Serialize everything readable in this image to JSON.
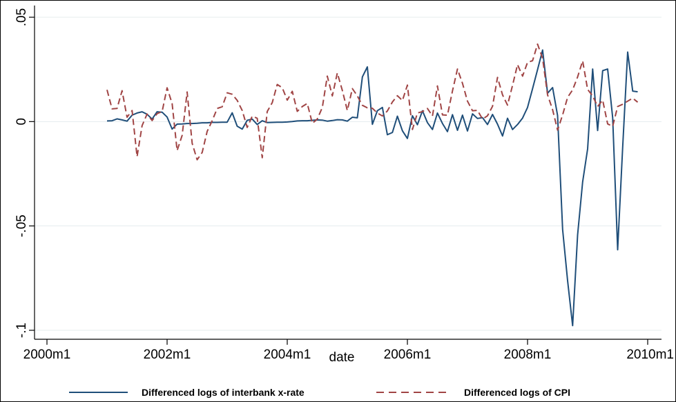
{
  "chart_data": {
    "type": "line",
    "title": "",
    "xlabel": "date",
    "ylabel": "",
    "x_ticks": [
      "2000m1",
      "2002m1",
      "2004m1",
      "2006m1",
      "2008m1",
      "2010m1"
    ],
    "y_ticks": [
      ".05",
      "0",
      "-.05",
      "-.1"
    ],
    "y_tick_values": [
      0.05,
      0,
      -0.05,
      -0.1
    ],
    "xlim": [
      "2000m1",
      "2010m1"
    ],
    "ylim": [
      -0.1,
      0.05
    ],
    "grid": "horizontal",
    "legend_position": "bottom",
    "series": [
      {
        "name": "Differenced logs of interbank x-rate",
        "color": "#1f4e79",
        "dash": "solid",
        "points": [
          [
            "2001m1",
            0.0003
          ],
          [
            "2001m2",
            0.0004
          ],
          [
            "2001m3",
            0.0013
          ],
          [
            "2001m4",
            0.0008
          ],
          [
            "2001m5",
            0.0002
          ],
          [
            "2001m6",
            0.0031
          ],
          [
            "2001m7",
            0.0041
          ],
          [
            "2001m8",
            0.0047
          ],
          [
            "2001m9",
            0.0035
          ],
          [
            "2001m10",
            0.0012
          ],
          [
            "2001m11",
            0.0047
          ],
          [
            "2001m12",
            0.0045
          ],
          [
            "2002m1",
            0.0022
          ],
          [
            "2002m2",
            -0.0036
          ],
          [
            "2002m3",
            -0.0012
          ],
          [
            "2002m4",
            -0.0011
          ],
          [
            "2002m5",
            -0.0009
          ],
          [
            "2002m6",
            -0.0009
          ],
          [
            "2002m7",
            -0.0008
          ],
          [
            "2002m8",
            -0.0006
          ],
          [
            "2002m9",
            -0.0006
          ],
          [
            "2002m10",
            -0.0004
          ],
          [
            "2002m11",
            -0.0004
          ],
          [
            "2002m12",
            -0.0003
          ],
          [
            "2003m1",
            -0.0003
          ],
          [
            "2003m2",
            0.0042
          ],
          [
            "2003m3",
            -0.0022
          ],
          [
            "2003m4",
            -0.0036
          ],
          [
            "2003m5",
            0.0006
          ],
          [
            "2003m6",
            0.0012
          ],
          [
            "2003m7",
            -0.0014
          ],
          [
            "2003m8",
            0.0004
          ],
          [
            "2003m9",
            -0.0005
          ],
          [
            "2003m10",
            -0.0004
          ],
          [
            "2003m11",
            -0.0003
          ],
          [
            "2003m12",
            -0.0003
          ],
          [
            "2004m1",
            -0.0002
          ],
          [
            "2004m2",
            0.0
          ],
          [
            "2004m3",
            0.0003
          ],
          [
            "2004m4",
            0.0004
          ],
          [
            "2004m5",
            0.0004
          ],
          [
            "2004m6",
            0.0006
          ],
          [
            "2004m7",
            0.0008
          ],
          [
            "2004m8",
            0.0007
          ],
          [
            "2004m9",
            0.0002
          ],
          [
            "2004m10",
            0.0005
          ],
          [
            "2004m11",
            0.0009
          ],
          [
            "2004m12",
            0.0008
          ],
          [
            "2005m1",
            0.0002
          ],
          [
            "2005m2",
            0.0021
          ],
          [
            "2005m3",
            0.0018
          ],
          [
            "2005m4",
            0.0214
          ],
          [
            "2005m5",
            0.0262
          ],
          [
            "2005m6",
            -0.0013
          ],
          [
            "2005m7",
            0.0052
          ],
          [
            "2005m8",
            0.0068
          ],
          [
            "2005m9",
            -0.0063
          ],
          [
            "2005m10",
            -0.0052
          ],
          [
            "2005m11",
            0.0026
          ],
          [
            "2005m12",
            -0.0044
          ],
          [
            "2006m1",
            -0.0081
          ],
          [
            "2006m2",
            0.0028
          ],
          [
            "2006m3",
            -0.0015
          ],
          [
            "2006m4",
            0.0052
          ],
          [
            "2006m5",
            -0.0005
          ],
          [
            "2006m6",
            -0.0038
          ],
          [
            "2006m7",
            0.0041
          ],
          [
            "2006m8",
            -0.0009
          ],
          [
            "2006m9",
            -0.0048
          ],
          [
            "2006m10",
            0.0033
          ],
          [
            "2006m11",
            -0.0042
          ],
          [
            "2006m12",
            0.0031
          ],
          [
            "2007m1",
            -0.0045
          ],
          [
            "2007m2",
            0.0037
          ],
          [
            "2007m3",
            0.0015
          ],
          [
            "2007m4",
            0.0019
          ],
          [
            "2007m5",
            -0.0014
          ],
          [
            "2007m6",
            0.0034
          ],
          [
            "2007m7",
            -0.0012
          ],
          [
            "2007m8",
            -0.0069
          ],
          [
            "2007m9",
            0.0016
          ],
          [
            "2007m10",
            -0.0038
          ],
          [
            "2007m11",
            -0.0014
          ],
          [
            "2007m12",
            0.0017
          ],
          [
            "2008m1",
            0.0068
          ],
          [
            "2008m2",
            0.0158
          ],
          [
            "2008m3",
            0.0249
          ],
          [
            "2008m4",
            0.0343
          ],
          [
            "2008m5",
            0.0136
          ],
          [
            "2008m6",
            0.0163
          ],
          [
            "2008m7",
            0.0029
          ],
          [
            "2008m8",
            -0.0517
          ],
          [
            "2008m9",
            -0.0762
          ],
          [
            "2008m10",
            -0.0978
          ],
          [
            "2008m11",
            -0.0543
          ],
          [
            "2008m12",
            -0.0289
          ],
          [
            "2009m1",
            -0.0131
          ],
          [
            "2009m2",
            0.0252
          ],
          [
            "2009m3",
            -0.0043
          ],
          [
            "2009m4",
            0.0244
          ],
          [
            "2009m5",
            0.0252
          ],
          [
            "2009m6",
            0.0018
          ],
          [
            "2009m7",
            -0.0614
          ],
          [
            "2009m8",
            -0.0121
          ],
          [
            "2009m9",
            0.0333
          ],
          [
            "2009m10",
            0.0146
          ],
          [
            "2009m11",
            0.0143
          ]
        ]
      },
      {
        "name": "Differenced logs of CPI",
        "color": "#a04444",
        "dash": "dashed",
        "points": [
          [
            "2001m1",
            0.0152
          ],
          [
            "2001m2",
            0.0061
          ],
          [
            "2001m3",
            0.0063
          ],
          [
            "2001m4",
            0.0148
          ],
          [
            "2001m5",
            0.0021
          ],
          [
            "2001m6",
            0.0053
          ],
          [
            "2001m7",
            -0.0168
          ],
          [
            "2001m8",
            -0.0019
          ],
          [
            "2001m9",
            0.0036
          ],
          [
            "2001m10",
            0.0005
          ],
          [
            "2001m11",
            0.0038
          ],
          [
            "2001m12",
            0.0048
          ],
          [
            "2002m1",
            0.0162
          ],
          [
            "2002m2",
            0.0086
          ],
          [
            "2002m3",
            -0.0139
          ],
          [
            "2002m4",
            -0.0066
          ],
          [
            "2002m5",
            0.0142
          ],
          [
            "2002m6",
            -0.0104
          ],
          [
            "2002m7",
            -0.0183
          ],
          [
            "2002m8",
            -0.0148
          ],
          [
            "2002m9",
            -0.0047
          ],
          [
            "2002m10",
            0.0004
          ],
          [
            "2002m11",
            0.0063
          ],
          [
            "2002m12",
            0.0071
          ],
          [
            "2003m1",
            0.0138
          ],
          [
            "2003m2",
            0.0131
          ],
          [
            "2003m3",
            0.0102
          ],
          [
            "2003m4",
            0.0053
          ],
          [
            "2003m5",
            -0.0028
          ],
          [
            "2003m6",
            0.0026
          ],
          [
            "2003m7",
            0.0016
          ],
          [
            "2003m8",
            -0.0173
          ],
          [
            "2003m9",
            0.0048
          ],
          [
            "2003m10",
            0.0091
          ],
          [
            "2003m11",
            0.0178
          ],
          [
            "2003m12",
            0.0162
          ],
          [
            "2004m1",
            0.0103
          ],
          [
            "2004m2",
            0.0145
          ],
          [
            "2004m3",
            0.0049
          ],
          [
            "2004m4",
            0.0072
          ],
          [
            "2004m5",
            0.0087
          ],
          [
            "2004m6",
            -0.0008
          ],
          [
            "2004m7",
            0.0012
          ],
          [
            "2004m8",
            0.0068
          ],
          [
            "2004m9",
            0.0218
          ],
          [
            "2004m10",
            0.0123
          ],
          [
            "2004m11",
            0.0233
          ],
          [
            "2004m12",
            0.0149
          ],
          [
            "2005m1",
            0.0053
          ],
          [
            "2005m2",
            0.0158
          ],
          [
            "2005m3",
            0.0123
          ],
          [
            "2005m4",
            0.0078
          ],
          [
            "2005m5",
            0.0066
          ],
          [
            "2005m6",
            0.0064
          ],
          [
            "2005m7",
            0.0041
          ],
          [
            "2005m8",
            0.0027
          ],
          [
            "2005m9",
            0.0051
          ],
          [
            "2005m10",
            0.0094
          ],
          [
            "2005m11",
            0.0124
          ],
          [
            "2005m12",
            0.0101
          ],
          [
            "2006m1",
            0.0175
          ],
          [
            "2006m2",
            -0.0038
          ],
          [
            "2006m3",
            0.0041
          ],
          [
            "2006m4",
            0.0048
          ],
          [
            "2006m5",
            0.0063
          ],
          [
            "2006m6",
            0.0027
          ],
          [
            "2006m7",
            0.0171
          ],
          [
            "2006m8",
            0.0032
          ],
          [
            "2006m9",
            0.0031
          ],
          [
            "2006m10",
            0.0147
          ],
          [
            "2006m11",
            0.0252
          ],
          [
            "2006m12",
            0.0183
          ],
          [
            "2007m1",
            0.0098
          ],
          [
            "2007m2",
            0.0052
          ],
          [
            "2007m3",
            0.0054
          ],
          [
            "2007m4",
            0.0012
          ],
          [
            "2007m5",
            0.0028
          ],
          [
            "2007m6",
            0.0073
          ],
          [
            "2007m7",
            0.0212
          ],
          [
            "2007m8",
            0.0128
          ],
          [
            "2007m9",
            0.0079
          ],
          [
            "2007m10",
            0.0174
          ],
          [
            "2007m11",
            0.0273
          ],
          [
            "2007m12",
            0.0218
          ],
          [
            "2008m1",
            0.0284
          ],
          [
            "2008m2",
            0.0292
          ],
          [
            "2008m3",
            0.0371
          ],
          [
            "2008m4",
            0.0303
          ],
          [
            "2008m5",
            0.0128
          ],
          [
            "2008m6",
            0.0057
          ],
          [
            "2008m7",
            -0.0041
          ],
          [
            "2008m8",
            0.0032
          ],
          [
            "2008m9",
            0.0116
          ],
          [
            "2008m10",
            0.0152
          ],
          [
            "2008m11",
            0.0214
          ],
          [
            "2008m12",
            0.0291
          ],
          [
            "2009m1",
            0.0154
          ],
          [
            "2009m2",
            0.0123
          ],
          [
            "2009m3",
            0.0072
          ],
          [
            "2009m4",
            0.0103
          ],
          [
            "2009m5",
            -0.0011
          ],
          [
            "2009m6",
            -0.0023
          ],
          [
            "2009m7",
            0.0072
          ],
          [
            "2009m8",
            0.0083
          ],
          [
            "2009m9",
            0.0098
          ],
          [
            "2009m10",
            0.0112
          ],
          [
            "2009m11",
            0.0093
          ]
        ]
      }
    ]
  }
}
